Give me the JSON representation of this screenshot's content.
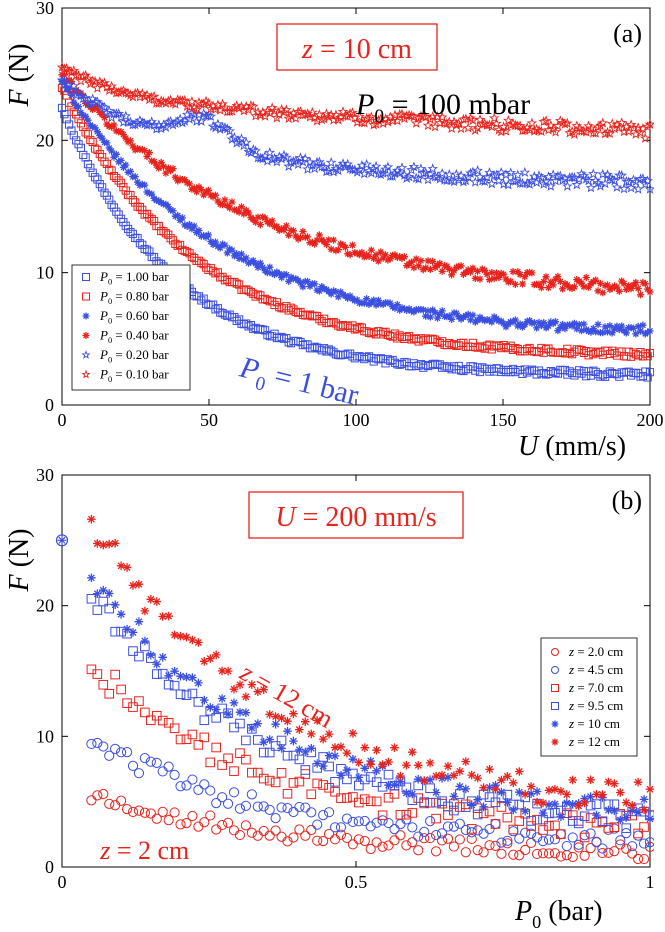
{
  "colors": {
    "red": "#e8231c",
    "blue": "#3b4fe0",
    "axis": "#000000"
  },
  "chart_data": [
    {
      "id": "a",
      "type": "scatter",
      "panel_label": "(a)",
      "title_box": "z = 10 cm",
      "title_var": "z",
      "title_rest": " = 10 cm",
      "xlabel_var": "U",
      "xlabel_unit": " (mm/s)",
      "ylabel_var": "F",
      "ylabel_unit": " (N)",
      "xlim": [
        0,
        200
      ],
      "ylim": [
        0,
        30
      ],
      "xticks": [
        0,
        50,
        100,
        150,
        200
      ],
      "yticks": [
        0,
        10,
        20,
        30
      ],
      "legend_position": "bottom-left",
      "annotations": [
        {
          "id": "p100",
          "sym": "P",
          "sub": "0",
          "rest": " = 100 mbar",
          "color": "#000000",
          "x": 100,
          "y": 22.0,
          "angle": 0
        },
        {
          "id": "p1",
          "sym": "P",
          "sub": "0",
          "rest": " = 1 bar",
          "color": "#3b4fe0",
          "x": 60,
          "y": 2.2,
          "angle": 14
        }
      ],
      "series": [
        {
          "name": "P0 = 1.00 bar",
          "sym": "P",
          "sub": "0",
          "rest": " = 1.00 bar",
          "marker": "square",
          "color": "#3b4fe0",
          "f0": 22.5,
          "finf": 2.2,
          "tau": 38,
          "shape": "exp",
          "noise": 0.12,
          "n": 250
        },
        {
          "name": "P0 = 0.80 bar",
          "sym": "P",
          "sub": "0",
          "rest": " = 0.80 bar",
          "marker": "square",
          "color": "#e8231c",
          "f0": 24.0,
          "finf": 3.6,
          "tau": 45,
          "shape": "exp",
          "noise": 0.12,
          "n": 250
        },
        {
          "name": "P0 = 0.60 bar",
          "sym": "P",
          "sub": "0",
          "rest": " = 0.60 bar",
          "marker": "asterisk",
          "color": "#3b4fe0",
          "f0": 24.5,
          "finf": 5.2,
          "tau": 52,
          "shape": "exp",
          "noise": 0.2,
          "n": 250
        },
        {
          "name": "P0 = 0.40 bar",
          "sym": "P",
          "sub": "0",
          "rest": " = 0.40 bar",
          "marker": "asterisk",
          "color": "#e8231c",
          "f0": 25.0,
          "finf": 8.0,
          "tau": 65,
          "shape": "exp",
          "noise": 0.3,
          "n": 250
        },
        {
          "name": "P0 = 0.20 bar",
          "sym": "P",
          "sub": "0",
          "rest": " = 0.20 bar",
          "marker": "star",
          "color": "#3b4fe0",
          "f0": 25.0,
          "finf": 16.0,
          "tau": 30,
          "shape": "hump",
          "noise": 0.3,
          "n": 250
        },
        {
          "name": "P0 = 0.10 bar",
          "sym": "P",
          "sub": "0",
          "rest": " = 0.10 bar",
          "marker": "star",
          "color": "#e8231c",
          "f0": 25.5,
          "finf": 19.0,
          "tau": 20,
          "shape": "slow",
          "noise": 0.3,
          "n": 250
        }
      ]
    },
    {
      "id": "b",
      "type": "scatter",
      "panel_label": "(b)",
      "title_box": "U = 200 mm/s",
      "title_var": "U",
      "title_rest": " = 200 mm/s",
      "xlabel_var": "P",
      "xlabel_sub": "0",
      "xlabel_unit": " (bar)",
      "ylabel_var": "F",
      "ylabel_unit": " (N)",
      "xlim": [
        0,
        1
      ],
      "ylim": [
        0,
        30
      ],
      "xticks": [
        0,
        0.5,
        1
      ],
      "xtick_labels": [
        "0",
        "0.5",
        "1"
      ],
      "yticks": [
        0,
        10,
        20,
        30
      ],
      "legend_position": "right",
      "extra_point": {
        "x": 0,
        "y": 25,
        "color": "#3b4fe0",
        "marker": "circle-asterisk"
      },
      "annotations": [
        {
          "id": "z12",
          "sym": "z",
          "rest": " = 12 cm",
          "color": "#e8231c",
          "x": 0.3,
          "y": 14.5,
          "angle": 30
        },
        {
          "id": "z2",
          "sym": "z",
          "rest": " = 2 cm",
          "color": "#e8231c",
          "x": 0.065,
          "y": 0.6,
          "angle": 0
        }
      ],
      "series": [
        {
          "name": "z = 2.0 cm",
          "sym": "z",
          "rest": " = 2.0 cm",
          "marker": "circle",
          "color": "#e8231c",
          "start": 5.5,
          "end": 1.0,
          "k": 2.5,
          "noise": 0.7,
          "n": 95,
          "x0": 0.05
        },
        {
          "name": "z = 4.5 cm",
          "sym": "z",
          "rest": " = 4.5 cm",
          "marker": "circle",
          "color": "#3b4fe0",
          "start": 9.8,
          "end": 1.8,
          "k": 2.5,
          "noise": 0.8,
          "n": 95,
          "x0": 0.05
        },
        {
          "name": "z = 7.0 cm",
          "sym": "z",
          "rest": " = 7.0 cm",
          "marker": "square",
          "color": "#e8231c",
          "start": 15.5,
          "end": 2.6,
          "k": 2.6,
          "noise": 1.0,
          "n": 95,
          "x0": 0.05
        },
        {
          "name": "z = 9.5 cm",
          "sym": "z",
          "rest": " = 9.5 cm",
          "marker": "square",
          "color": "#3b4fe0",
          "start": 20.8,
          "end": 3.2,
          "k": 2.6,
          "noise": 1.0,
          "n": 95,
          "x0": 0.05
        },
        {
          "name": "z = 10 cm",
          "sym": "z",
          "rest": " = 10 cm",
          "marker": "asterisk",
          "color": "#3b4fe0",
          "start": 22.3,
          "end": 3.6,
          "k": 2.5,
          "noise": 1.0,
          "n": 95,
          "x0": 0.05
        },
        {
          "name": "z = 12 cm",
          "sym": "z",
          "rest": " = 12 cm",
          "marker": "asterisk",
          "color": "#e8231c",
          "start": 26.7,
          "end": 4.4,
          "k": 2.5,
          "noise": 1.2,
          "n": 95,
          "x0": 0.05
        }
      ]
    }
  ]
}
